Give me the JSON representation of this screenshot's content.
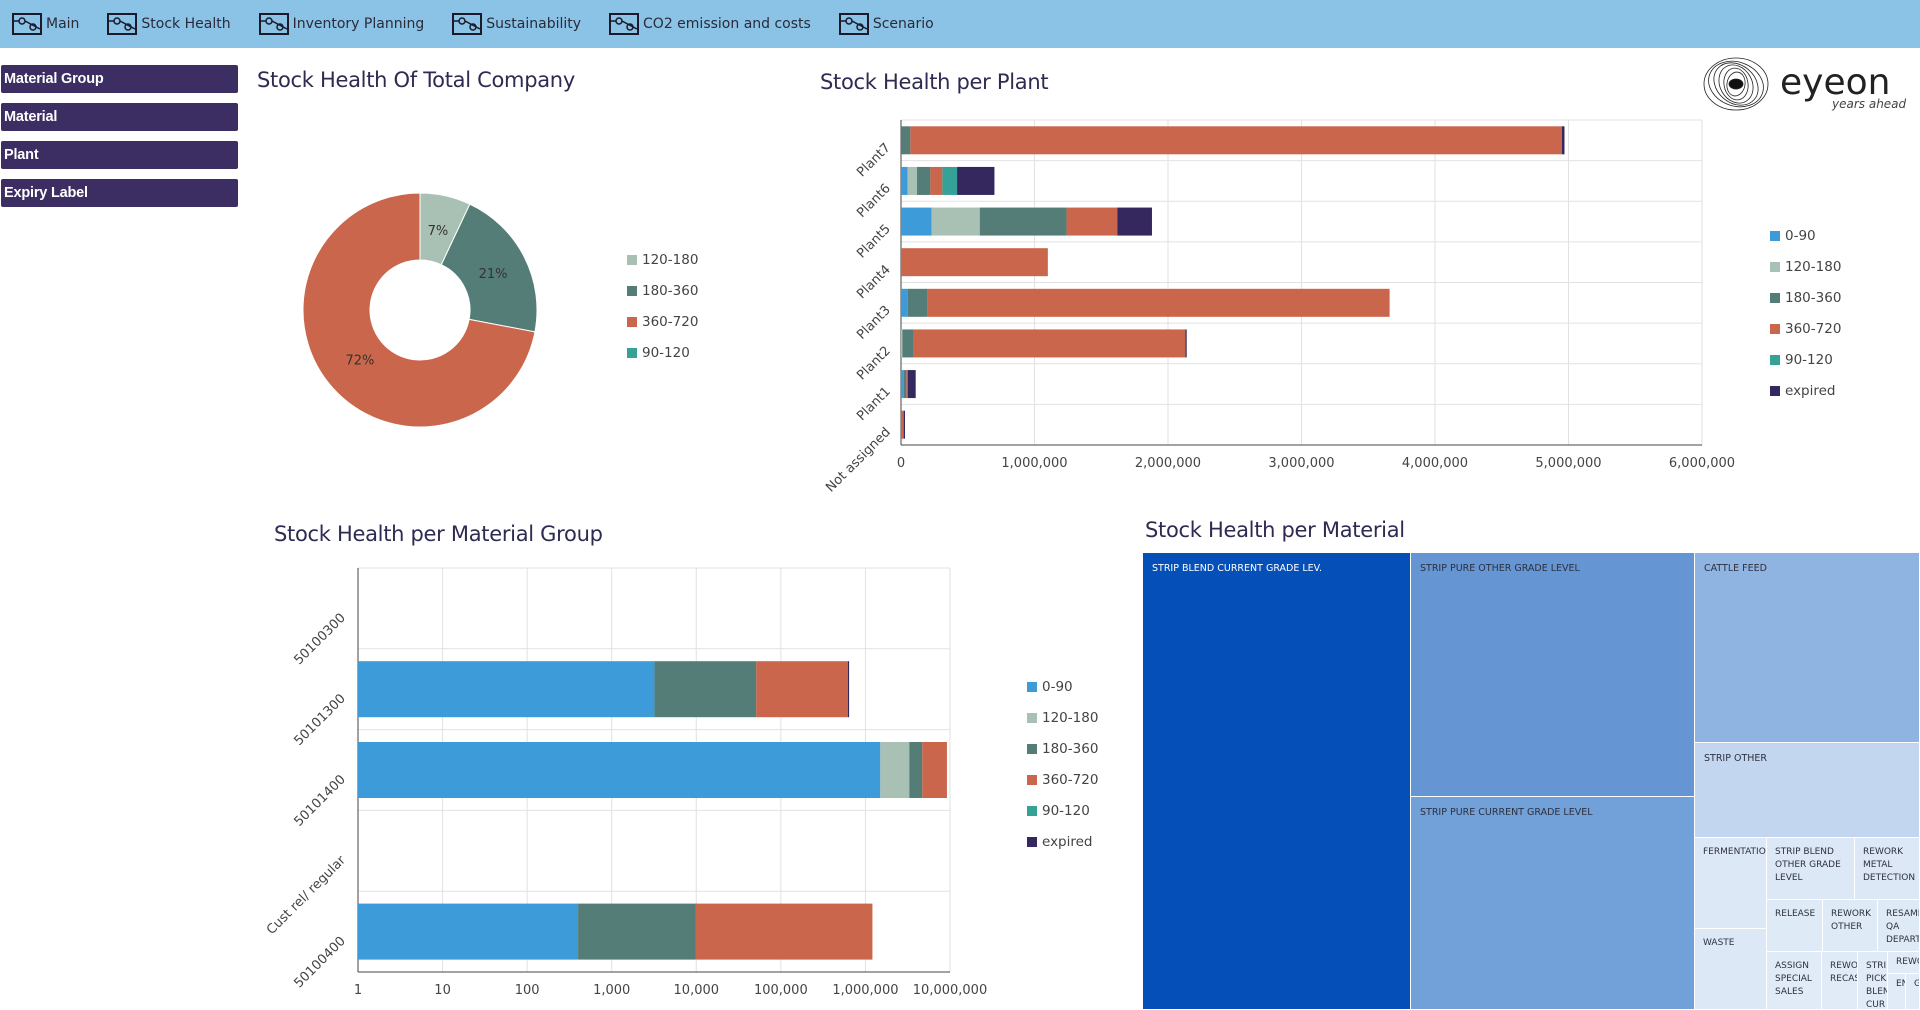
{
  "nav": [
    {
      "label": "Main"
    },
    {
      "label": "Stock Health"
    },
    {
      "label": "Inventory Planning"
    },
    {
      "label": "Sustainability"
    },
    {
      "label": "CO2 emission and costs"
    },
    {
      "label": "Scenario"
    }
  ],
  "filters": [
    "Material Group",
    "Material",
    "Plant",
    "Expiry Label"
  ],
  "logo": {
    "name": "eyeon",
    "tagline": "years ahead"
  },
  "colors": {
    "c0_90": "#3d9bd9",
    "c120_180": "#a9c1b4",
    "c180_360": "#557d78",
    "c360_720": "#c9664b",
    "c90_120": "#36a196",
    "expired": "#34285e",
    "nav": "#8bc3e6",
    "filter": "#3c2e62"
  },
  "donut": {
    "title": "Stock Health Of Total Company",
    "legend": [
      "120-180",
      "180-360",
      "360-720",
      "90-120"
    ],
    "chart_data": {
      "type": "pie",
      "labels": [
        "120-180",
        "180-360",
        "360-720"
      ],
      "values": [
        7,
        21,
        72
      ],
      "value_labels": [
        "7%",
        "21%",
        "72%"
      ]
    }
  },
  "plant": {
    "title": "Stock Health per Plant",
    "legend": [
      "0-90",
      "120-180",
      "180-360",
      "360-720",
      "90-120",
      "expired"
    ],
    "x_ticks": [
      "0",
      "1,000,000",
      "2,000,000",
      "3,000,000",
      "4,000,000",
      "5,000,000",
      "6,000,000"
    ],
    "chart_data": {
      "type": "bar",
      "orientation": "horizontal",
      "stacked": true,
      "categories": [
        "Plant7",
        "Plant6",
        "Plant5",
        "Plant4",
        "Plant3",
        "Plant2",
        "Plant1",
        "Not assigned"
      ],
      "xlim": [
        0,
        6000000
      ],
      "series": [
        {
          "name": "0-90",
          "values": [
            0,
            50000,
            230000,
            0,
            50000,
            0,
            20000,
            0
          ]
        },
        {
          "name": "120-180",
          "values": [
            0,
            70000,
            360000,
            0,
            0,
            10000,
            0,
            0
          ]
        },
        {
          "name": "180-360",
          "values": [
            70000,
            100000,
            650000,
            0,
            150000,
            80000,
            20000,
            0
          ]
        },
        {
          "name": "360-720",
          "values": [
            4880000,
            90000,
            380000,
            1100000,
            3460000,
            2040000,
            10000,
            20000
          ]
        },
        {
          "name": "90-120",
          "values": [
            0,
            110000,
            0,
            0,
            0,
            0,
            0,
            0
          ]
        },
        {
          "name": "expired",
          "values": [
            20000,
            280000,
            260000,
            0,
            0,
            10000,
            60000,
            10000
          ]
        }
      ]
    }
  },
  "matgroup": {
    "title": "Stock Health per Material Group",
    "legend": [
      "0-90",
      "120-180",
      "180-360",
      "360-720",
      "90-120",
      "expired"
    ],
    "x_ticks": [
      "1",
      "10",
      "100",
      "1,000",
      "10,000",
      "100,000",
      "1,000,000",
      "10,000,000"
    ],
    "chart_data": {
      "type": "bar",
      "orientation": "horizontal",
      "stacked": true,
      "xscale": "log",
      "xlim": [
        1,
        10000000
      ],
      "categories": [
        "50100300",
        "50101300",
        "50101400",
        "Cust rel/ regular",
        "50100400"
      ],
      "series": [
        {
          "name": "0-90",
          "values": [
            0,
            3200,
            1500000,
            0,
            400
          ]
        },
        {
          "name": "120-180",
          "values": [
            0,
            0,
            1800000,
            0,
            0
          ]
        },
        {
          "name": "180-360",
          "values": [
            0,
            48000,
            1400000,
            0,
            9500
          ]
        },
        {
          "name": "360-720",
          "values": [
            0,
            570000,
            4500000,
            0,
            1200000
          ]
        },
        {
          "name": "90-120",
          "values": [
            0,
            0,
            0,
            0,
            0
          ]
        },
        {
          "name": "expired",
          "values": [
            0,
            20000,
            0,
            0,
            0
          ]
        }
      ]
    }
  },
  "material": {
    "title": "Stock Health per Material",
    "tiles": [
      "STRIP BLEND CURRENT GRADE LEV.",
      "STRIP PURE OTHER GRADE LEVEL",
      "STRIP PURE CURRENT GRADE LEVEL",
      "CATTLE FEED",
      "STRIP OTHER",
      "FERMENTATIO",
      "STRIP BLEND OTHER GRADE LEVEL",
      "REWORK METAL DETECTION",
      "WASTE",
      "RELEASE",
      "REWORK OTHER",
      "RESAMP QA DEPART",
      "ASSIGN SPECIAL SALES",
      "REWO RECAS",
      "STRI PICK BLEN CUR",
      "REWO",
      "EN",
      "G"
    ]
  }
}
